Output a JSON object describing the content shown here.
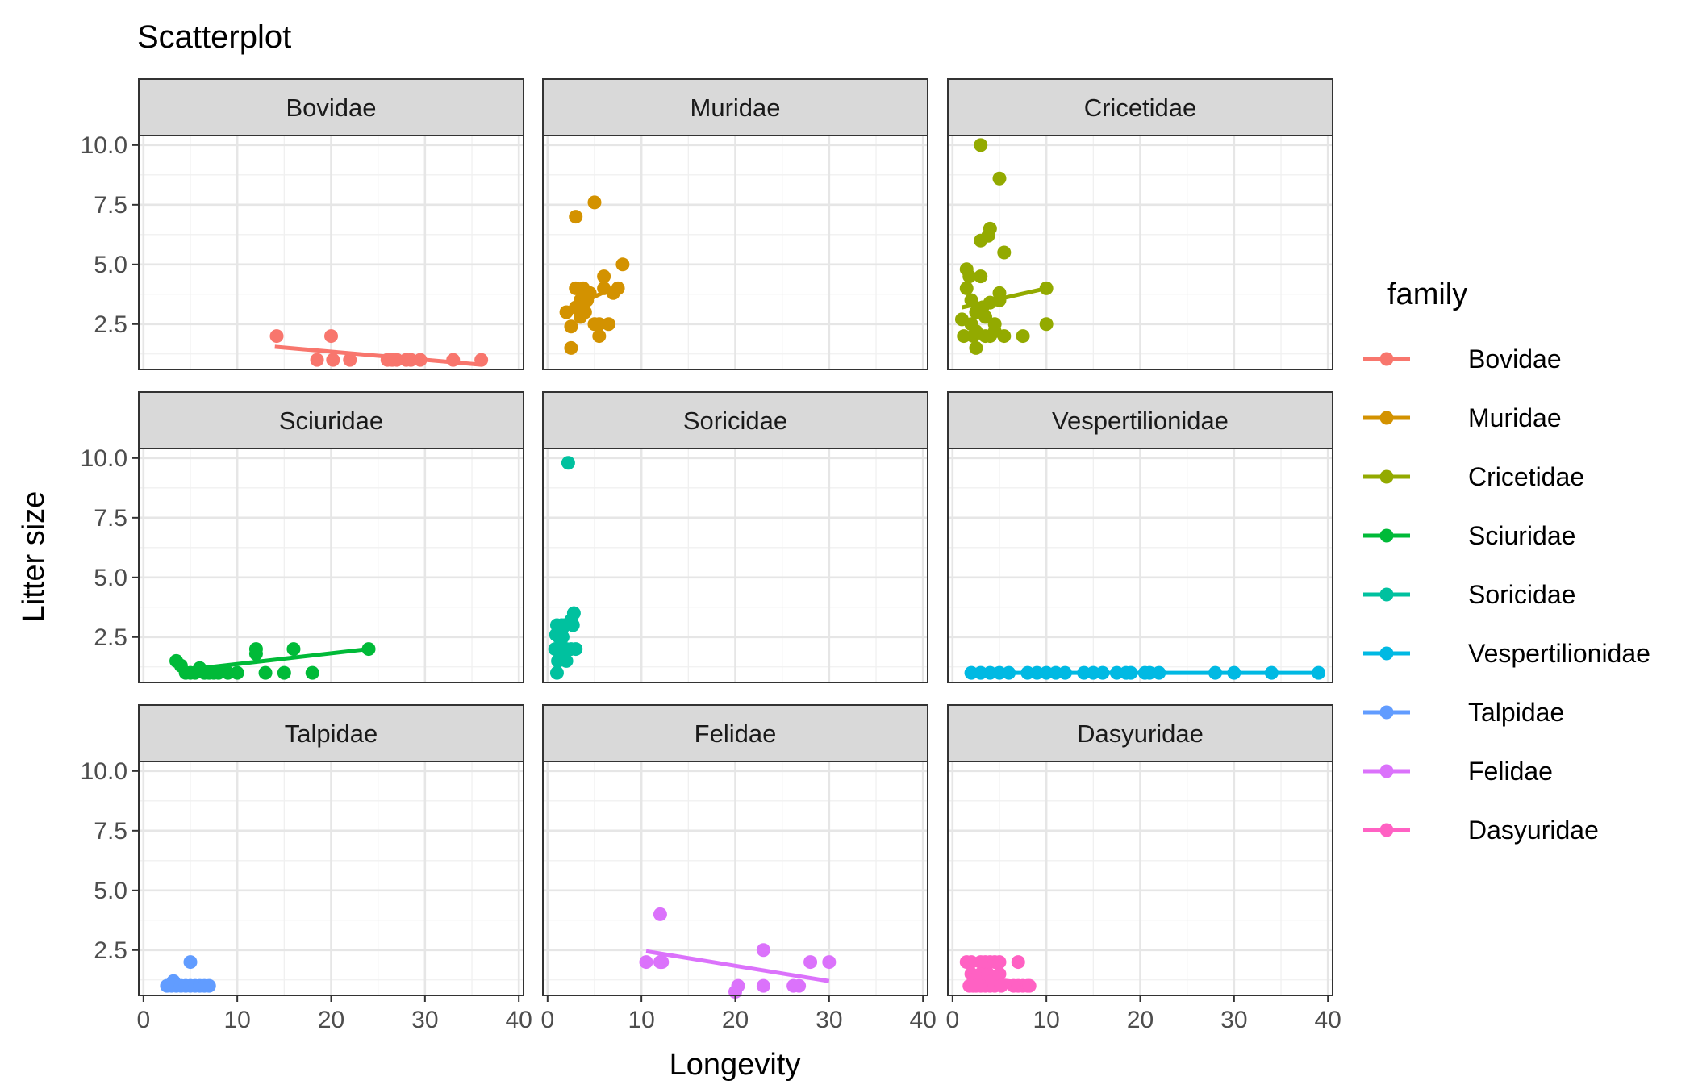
{
  "chart_data": {
    "type": "scatter",
    "title": "Scatterplot",
    "xlabel": "Longevity",
    "ylabel": "Litter size",
    "xlim": [
      -0.5,
      40.5
    ],
    "ylim": [
      0.6,
      10.4
    ],
    "x_ticks": [
      0,
      10,
      20,
      30,
      40
    ],
    "x_tick_labels": [
      "0",
      "10",
      "20",
      "30",
      "40"
    ],
    "y_ticks": [
      2.5,
      5.0,
      7.5,
      10.0
    ],
    "y_tick_labels": [
      "2.5",
      "5.0",
      "7.5",
      "10.0"
    ],
    "grid": true,
    "legend": {
      "title": "family",
      "position": "right",
      "items": [
        "Bovidae",
        "Muridae",
        "Cricetidae",
        "Sciuridae",
        "Soricidae",
        "Vespertilionidae",
        "Talpidae",
        "Felidae",
        "Dasyuridae"
      ]
    },
    "colors": {
      "Bovidae": "#F8766D",
      "Muridae": "#D39200",
      "Cricetidae": "#93AA00",
      "Sciuridae": "#00BA38",
      "Soricidae": "#00C19F",
      "Vespertilionidae": "#00B9E3",
      "Talpidae": "#619CFF",
      "Felidae": "#DB72FB",
      "Dasyuridae": "#FF61C3"
    },
    "series": [
      {
        "name": "Bovidae",
        "x": [
          14.2,
          18.5,
          20,
          20.2,
          22,
          26,
          26.5,
          27,
          28,
          28.5,
          29.5,
          33,
          36
        ],
        "y": [
          2,
          1,
          2,
          1,
          1,
          1,
          1,
          1,
          1,
          1,
          1,
          1,
          1
        ],
        "fit": [
          [
            14,
            1.55
          ],
          [
            36,
            0.8
          ]
        ]
      },
      {
        "name": "Muridae",
        "x": [
          2,
          2.5,
          2.5,
          3,
          3,
          3,
          3.5,
          3.5,
          3.8,
          4,
          4,
          4.2,
          4.5,
          5,
          5,
          5.5,
          5.5,
          6,
          6,
          6.5,
          7,
          7.5,
          8
        ],
        "y": [
          3,
          2.4,
          1.5,
          7,
          4,
          3.2,
          3.5,
          2.8,
          4,
          3,
          3.8,
          3.5,
          3.8,
          7.6,
          2.5,
          2,
          2.5,
          4.5,
          4,
          2.5,
          3.8,
          4.0,
          5
        ],
        "fit": [
          [
            2,
            3.1
          ],
          [
            8,
            4.2
          ]
        ]
      },
      {
        "name": "Cricetidae",
        "x": [
          1,
          1.2,
          1.5,
          1.5,
          1.8,
          2,
          2,
          2.2,
          2.5,
          2.5,
          2.5,
          3,
          3,
          3,
          3.2,
          3.5,
          3.5,
          3.8,
          4,
          4,
          4,
          4.5,
          4.5,
          5,
          5,
          5,
          5.5,
          5.5,
          7.5,
          10,
          10
        ],
        "y": [
          2.7,
          2,
          4.8,
          4,
          4.5,
          3.5,
          2.5,
          2,
          3,
          2.2,
          1.5,
          6,
          4.5,
          10,
          3.2,
          2.8,
          2,
          6.2,
          6.5,
          3.4,
          2,
          2.5,
          2.2,
          8.6,
          3.8,
          3.5,
          5.5,
          2,
          2,
          4,
          2.5
        ],
        "fit": [
          [
            1,
            3.2
          ],
          [
            10,
            4
          ]
        ]
      },
      {
        "name": "Sciuridae",
        "x": [
          3.5,
          4,
          4.5,
          5,
          5.5,
          6,
          6.5,
          7,
          7.5,
          8,
          9,
          10,
          12,
          12,
          13,
          15,
          16,
          18,
          24
        ],
        "y": [
          1.5,
          1.3,
          1,
          1,
          1,
          1.2,
          1,
          1,
          1,
          1,
          1,
          1,
          2,
          1.8,
          1,
          1,
          2,
          1,
          2
        ],
        "fit": [
          [
            4,
            1.1
          ],
          [
            24,
            2
          ]
        ]
      },
      {
        "name": "Soricidae",
        "x": [
          0.8,
          0.9,
          1,
          1,
          1.1,
          1.2,
          1.3,
          1.5,
          1.5,
          1.6,
          1.8,
          2,
          2,
          2.2,
          2.5,
          2.5,
          2.7,
          2.8,
          3
        ],
        "y": [
          2,
          2.6,
          1,
          3,
          1.5,
          2.5,
          2,
          1.6,
          3,
          2.5,
          3,
          1.5,
          2,
          9.8,
          3.2,
          2,
          3,
          3.5,
          2
        ],
        "fit": [
          [
            0.8,
            1.6
          ],
          [
            3,
            3.7
          ]
        ]
      },
      {
        "name": "Vespertilionidae",
        "x": [
          2,
          3,
          4,
          5,
          6,
          8,
          9,
          10,
          11,
          12,
          14,
          15,
          16,
          17.5,
          18.5,
          19,
          20.5,
          21,
          22,
          28,
          30,
          34,
          39
        ],
        "y": [
          1,
          1,
          1,
          1,
          1,
          1,
          1,
          1,
          1,
          1,
          1,
          1,
          1,
          1,
          1,
          1,
          1,
          1,
          1,
          1,
          1,
          1,
          1
        ],
        "fit": [
          [
            2,
            1
          ],
          [
            39,
            1
          ]
        ]
      },
      {
        "name": "Talpidae",
        "x": [
          2.5,
          3,
          3.2,
          3.5,
          4,
          4.5,
          5,
          5,
          5.5,
          6,
          6.5,
          7
        ],
        "y": [
          1,
          1,
          1.2,
          1,
          1,
          1,
          2,
          1,
          1,
          1,
          1,
          1
        ],
        "fit": [
          [
            2.5,
            1.1
          ],
          [
            7,
            1
          ]
        ]
      },
      {
        "name": "Felidae",
        "x": [
          10.5,
          12,
          12,
          12.2,
          20,
          20.3,
          23,
          23,
          26.2,
          26.8,
          28,
          30
        ],
        "y": [
          2,
          4,
          2,
          2,
          0.75,
          1,
          2.5,
          1,
          1,
          1,
          2,
          2
        ],
        "fit": [
          [
            10.5,
            2.45
          ],
          [
            30,
            1.2
          ]
        ]
      },
      {
        "name": "Dasyuridae",
        "x": [
          1.5,
          1.8,
          2,
          2,
          2.2,
          2.5,
          2.5,
          3,
          3,
          3,
          3.5,
          3.5,
          3.8,
          4,
          4,
          4.2,
          4.5,
          4.5,
          5,
          5,
          5.2,
          6.5,
          7,
          7,
          7.5,
          8,
          8.2
        ],
        "y": [
          2,
          1,
          1.5,
          2,
          1,
          1.3,
          1,
          2,
          1.5,
          1,
          2,
          1,
          1.5,
          2,
          1,
          1.2,
          2,
          1,
          1.5,
          2,
          1,
          1,
          1,
          2,
          1,
          1,
          1
        ],
        "fit": [
          [
            1.5,
            1.4
          ],
          [
            8.2,
            1.1
          ]
        ]
      }
    ]
  }
}
